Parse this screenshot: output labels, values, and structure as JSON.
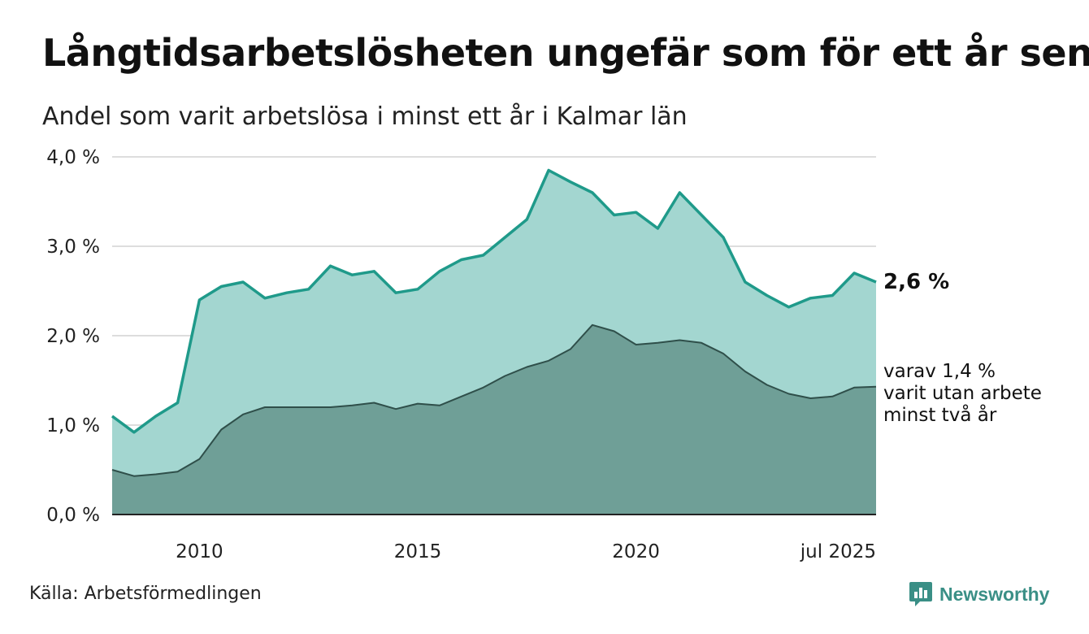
{
  "title": "Långtidsarbetslösheten ungefär som för ett år sen",
  "subtitle": "Andel som varit arbetslösa i minst ett år i Kalmar län",
  "source": "Källa: Arbetsförmedlingen",
  "logo_text": "Newsworthy",
  "annotations": {
    "last_value": "2,6 %",
    "note_line1": "varav 1,4 %",
    "note_line2": "varit utan arbete",
    "note_line3": "minst två år"
  },
  "colors": {
    "series1_line": "#1f9a8a",
    "series1_fill": "#a3d6d0",
    "series2_line": "#2f4f4a",
    "series2_fill": "#6f9f97",
    "grid": "#dddddd",
    "brand": "#3a8f86"
  },
  "chart_data": {
    "type": "area",
    "title": "Långtidsarbetslösheten ungefär som för ett år sen",
    "subtitle": "Andel som varit arbetslösa i minst ett år i Kalmar län",
    "ylim": [
      0,
      4.0
    ],
    "yticks": [
      0,
      1,
      2,
      3,
      4
    ],
    "ytick_labels": [
      "0,0 %",
      "1,0 %",
      "2,0 %",
      "3,0 %",
      "4,0 %"
    ],
    "xlim": [
      2008.0,
      2025.5
    ],
    "xticks": [
      2010,
      2015,
      2020,
      2025.5
    ],
    "xtick_labels": [
      "2010",
      "2015",
      "2020",
      "jul 2025"
    ],
    "grid": true,
    "x": [
      2008.0,
      2008.5,
      2009.0,
      2009.5,
      2010.0,
      2010.5,
      2011.0,
      2011.5,
      2012.0,
      2012.5,
      2013.0,
      2013.5,
      2014.0,
      2014.5,
      2015.0,
      2015.5,
      2016.0,
      2016.5,
      2017.0,
      2017.5,
      2018.0,
      2018.5,
      2019.0,
      2019.5,
      2020.0,
      2020.5,
      2021.0,
      2021.5,
      2022.0,
      2022.5,
      2023.0,
      2023.5,
      2024.0,
      2024.5,
      2025.0,
      2025.5
    ],
    "series": [
      {
        "values": [
          1.1,
          0.92,
          1.1,
          1.25,
          2.4,
          2.55,
          2.6,
          2.42,
          2.48,
          2.52,
          2.78,
          2.68,
          2.72,
          2.48,
          2.52,
          2.72,
          2.85,
          2.9,
          3.1,
          3.3,
          3.85,
          3.72,
          3.6,
          3.35,
          3.38,
          3.2,
          3.6,
          3.35,
          3.1,
          2.6,
          2.45,
          2.32,
          2.42,
          2.45,
          2.7,
          2.6
        ]
      },
      {
        "values": [
          0.5,
          0.43,
          0.45,
          0.48,
          0.62,
          0.95,
          1.12,
          1.2,
          1.2,
          1.2,
          1.2,
          1.22,
          1.25,
          1.18,
          1.24,
          1.22,
          1.32,
          1.42,
          1.55,
          1.65,
          1.72,
          1.85,
          2.12,
          2.05,
          1.9,
          1.92,
          1.95,
          1.92,
          1.8,
          1.6,
          1.45,
          1.35,
          1.3,
          1.32,
          1.42,
          1.43
        ]
      }
    ]
  }
}
